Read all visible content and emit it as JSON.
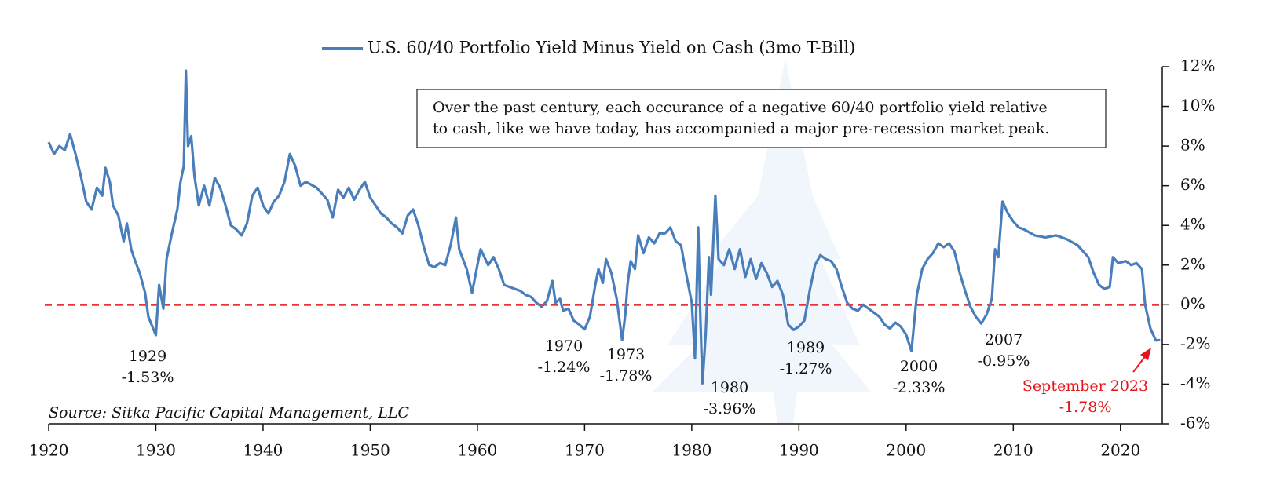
{
  "chart_data": {
    "type": "line",
    "legend": "U.S. 60/40 Portfolio Yield Minus Yield on Cash (3mo T-Bill)",
    "note": [
      "Over the past century, each occurance of a negative 60/40 portfolio yield relative",
      "to cash, like we have today, has accompanied a major pre-recession market peak."
    ],
    "source": "Source: Sitka Pacific Capital Management, LLC",
    "series": [
      {
        "name": "U.S. 60/40 Portfolio Yield Minus Yield on Cash (3mo T-Bill)",
        "color": "#4a7ebb",
        "x": [
          1920,
          1920.5,
          1921,
          1921.5,
          1922,
          1922.5,
          1923,
          1923.5,
          1924,
          1924.5,
          1925,
          1925.3,
          1925.7,
          1926,
          1926.5,
          1927,
          1927.3,
          1927.7,
          1928,
          1928.5,
          1929,
          1929.3,
          1929.6,
          1930,
          1930.3,
          1930.7,
          1931,
          1931.5,
          1932,
          1932.3,
          1932.6,
          1932.8,
          1933,
          1933.3,
          1933.6,
          1934,
          1934.5,
          1935,
          1935.5,
          1936,
          1936.5,
          1937,
          1937.5,
          1938,
          1938.5,
          1939,
          1939.5,
          1940,
          1940.5,
          1941,
          1941.5,
          1942,
          1942.5,
          1943,
          1943.5,
          1944,
          1945,
          1946,
          1946.5,
          1947,
          1947.5,
          1948,
          1948.5,
          1949,
          1949.5,
          1950,
          1950.5,
          1951,
          1951.5,
          1952,
          1952.5,
          1953,
          1953.5,
          1954,
          1954.5,
          1955,
          1955.5,
          1956,
          1956.5,
          1957,
          1957.5,
          1958,
          1958.3,
          1959,
          1959.5,
          1960,
          1960.3,
          1961,
          1961.5,
          1962,
          1962.5,
          1963,
          1964,
          1964.5,
          1965,
          1965.5,
          1966,
          1966.5,
          1967,
          1967.3,
          1967.7,
          1968,
          1968.5,
          1969,
          1969.5,
          1970,
          1970.5,
          1971,
          1971.3,
          1971.7,
          1972,
          1972.5,
          1973,
          1973.5,
          1973.8,
          1974,
          1974.3,
          1974.7,
          1975,
          1975.5,
          1976,
          1976.5,
          1977,
          1977.5,
          1978,
          1978.5,
          1979,
          1979.5,
          1980,
          1980.3,
          1980.6,
          1980.8,
          1981,
          1981.3,
          1981.6,
          1981.8,
          1982.2,
          1982.5,
          1983,
          1983.5,
          1984,
          1984.5,
          1985,
          1985.5,
          1986,
          1986.5,
          1987,
          1987.5,
          1988,
          1988.5,
          1989,
          1989.5,
          1990,
          1990.5,
          1991,
          1991.5,
          1992,
          1992.5,
          1993,
          1993.5,
          1994,
          1994.5,
          1995,
          1995.5,
          1996,
          1996.5,
          1997,
          1997.5,
          1998,
          1998.5,
          1999,
          1999.5,
          2000,
          2000.5,
          2001,
          2001.5,
          2002,
          2002.5,
          2003,
          2003.5,
          2004,
          2004.5,
          2005,
          2005.5,
          2006,
          2006.5,
          2007,
          2007.5,
          2008,
          2008.3,
          2008.6,
          2009,
          2009.5,
          2010,
          2010.5,
          2011,
          2012,
          2013,
          2014,
          2015,
          2016,
          2017,
          2017.5,
          2018,
          2018.5,
          2019,
          2019.3,
          2019.8,
          2020.5,
          2021,
          2021.5,
          2022,
          2022.3,
          2022.8,
          2023.3,
          2023.7
        ],
        "values": [
          8.2,
          7.6,
          8.0,
          7.8,
          8.6,
          7.6,
          6.5,
          5.2,
          4.8,
          5.9,
          5.5,
          6.9,
          6.2,
          5.0,
          4.5,
          3.2,
          4.1,
          2.8,
          2.3,
          1.6,
          0.6,
          -0.6,
          -1.0,
          -1.53,
          1.0,
          -0.2,
          2.3,
          3.6,
          4.8,
          6.2,
          7.0,
          11.8,
          8.0,
          8.5,
          6.5,
          5.0,
          6.0,
          5.0,
          6.4,
          5.9,
          5.0,
          4.0,
          3.8,
          3.5,
          4.1,
          5.5,
          5.9,
          5.0,
          4.6,
          5.2,
          5.5,
          6.2,
          7.6,
          7.0,
          6.0,
          6.2,
          5.9,
          5.3,
          4.4,
          5.8,
          5.4,
          5.9,
          5.3,
          5.8,
          6.2,
          5.4,
          5.0,
          4.6,
          4.4,
          4.1,
          3.9,
          3.6,
          4.5,
          4.8,
          4.0,
          2.9,
          2.0,
          1.9,
          2.1,
          2.0,
          3.0,
          4.4,
          2.8,
          1.8,
          0.6,
          2.0,
          2.8,
          2.0,
          2.4,
          1.8,
          1.0,
          0.9,
          0.7,
          0.5,
          0.4,
          0.1,
          -0.1,
          0.2,
          1.2,
          0.1,
          0.3,
          -0.3,
          -0.2,
          -0.8,
          -1.0,
          -1.24,
          -0.6,
          1.0,
          1.8,
          1.1,
          2.3,
          1.6,
          0.3,
          -1.78,
          -0.5,
          1.0,
          2.2,
          1.8,
          3.5,
          2.6,
          3.4,
          3.1,
          3.6,
          3.6,
          3.9,
          3.2,
          3.0,
          1.5,
          0.1,
          -2.7,
          3.9,
          -0.6,
          -3.96,
          -1.5,
          2.4,
          0.5,
          5.5,
          2.3,
          2.0,
          2.8,
          1.8,
          2.8,
          1.4,
          2.3,
          1.3,
          2.1,
          1.6,
          0.9,
          1.2,
          0.5,
          -1.0,
          -1.27,
          -1.1,
          -0.8,
          0.7,
          2.0,
          2.5,
          2.3,
          2.2,
          1.8,
          0.9,
          0.1,
          -0.2,
          -0.3,
          0.0,
          -0.2,
          -0.4,
          -0.6,
          -1.0,
          -1.2,
          -0.9,
          -1.1,
          -1.5,
          -2.33,
          0.5,
          1.8,
          2.3,
          2.6,
          3.1,
          2.9,
          3.1,
          2.7,
          1.6,
          0.7,
          -0.1,
          -0.6,
          -0.95,
          -0.5,
          0.3,
          2.8,
          2.4,
          5.2,
          4.6,
          4.2,
          3.9,
          3.8,
          3.5,
          3.4,
          3.5,
          3.3,
          3.0,
          2.4,
          1.6,
          1.0,
          0.8,
          0.9,
          2.4,
          2.1,
          2.2,
          2.0,
          2.1,
          1.8,
          0.0,
          -1.2,
          -1.8,
          -1.78
        ]
      }
    ],
    "reference_line": {
      "value": 0,
      "color": "#e8141a"
    },
    "annotations": [
      [
        "1929",
        "-1.53%"
      ],
      [
        "1970",
        "-1.24%"
      ],
      [
        "1973",
        "-1.78%"
      ],
      [
        "1980",
        "-3.96%"
      ],
      [
        "1989",
        "-1.27%"
      ],
      [
        "2000",
        "-2.33%"
      ],
      [
        "2007",
        "-0.95%"
      ],
      [
        "September 2023",
        "-1.78%"
      ]
    ],
    "highlight_color": "#e8141a",
    "xlim": [
      1920,
      2023.9
    ],
    "xticks": [
      1920,
      1930,
      1940,
      1950,
      1960,
      1970,
      1980,
      1990,
      2000,
      2010,
      2020
    ],
    "ylim": [
      -6,
      12
    ],
    "yticks": [
      {
        "value": -6,
        "label": "-6%"
      },
      {
        "value": -4,
        "label": "-4%"
      },
      {
        "value": -2,
        "label": "-2%"
      },
      {
        "value": 0,
        "label": "0%"
      },
      {
        "value": 2,
        "label": "2%"
      },
      {
        "value": 4,
        "label": "4%"
      },
      {
        "value": 6,
        "label": "6%"
      },
      {
        "value": 8,
        "label": "8%"
      },
      {
        "value": 10,
        "label": "10%"
      },
      {
        "value": 12,
        "label": "12%"
      }
    ]
  }
}
